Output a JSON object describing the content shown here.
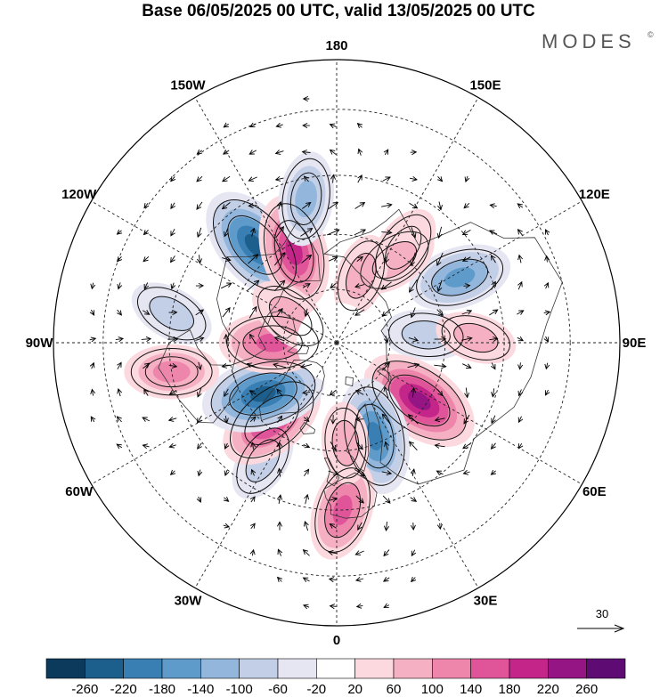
{
  "title": "Base 06/05/2025 00 UTC, valid 13/05/2025 00 UTC",
  "brand": {
    "name": "MODES",
    "mark": "©"
  },
  "projection": {
    "type": "north-polar-stereographic",
    "center": "North Pole"
  },
  "longitude_labels": [
    {
      "text": "180",
      "lon": 180
    },
    {
      "text": "150E",
      "lon": 150
    },
    {
      "text": "120E",
      "lon": 120
    },
    {
      "text": "90E",
      "lon": 90
    },
    {
      "text": "60E",
      "lon": 60
    },
    {
      "text": "30E",
      "lon": 30
    },
    {
      "text": "0",
      "lon": 0
    },
    {
      "text": "30W",
      "lon": -30
    },
    {
      "text": "60W",
      "lon": -60
    },
    {
      "text": "90W",
      "lon": -90
    },
    {
      "text": "120W",
      "lon": -120
    },
    {
      "text": "150W",
      "lon": -150
    }
  ],
  "colorbar": {
    "levels": [
      "-260",
      "-220",
      "-180",
      "-140",
      "-100",
      "-60",
      "-20",
      "20",
      "60",
      "100",
      "140",
      "180",
      "220",
      "260"
    ],
    "colors": [
      "#0b3a5c",
      "#1d5f8c",
      "#3a7fb3",
      "#5e9bcb",
      "#93b7dc",
      "#c3cfe6",
      "#e6e5f2",
      "#ffffff",
      "#fbd9df",
      "#f5b1c3",
      "#ee86ab",
      "#e0559a",
      "#c32589",
      "#951584",
      "#5e0b74"
    ]
  },
  "reference_vector": {
    "value": "30"
  },
  "anomalies": [
    {
      "lat": 55,
      "lon": -140,
      "value": -230
    },
    {
      "lat": 62,
      "lon": -155,
      "value": 190
    },
    {
      "lat": 50,
      "lon": -168,
      "value": -110
    },
    {
      "lat": 58,
      "lon": 145,
      "value": 80
    },
    {
      "lat": 52,
      "lon": 118,
      "value": -150
    },
    {
      "lat": 62,
      "lon": 145,
      "value": 90
    },
    {
      "lat": 70,
      "lon": 160,
      "value": 70
    },
    {
      "lat": 65,
      "lon": 95,
      "value": -80
    },
    {
      "lat": 52,
      "lon": 92,
      "value": 60
    },
    {
      "lat": 62,
      "lon": 55,
      "value": 230
    },
    {
      "lat": 62,
      "lon": 22,
      "value": -200
    },
    {
      "lat": 45,
      "lon": 2,
      "value": 140
    },
    {
      "lat": 52,
      "lon": -32,
      "value": -70
    },
    {
      "lat": 62,
      "lon": -40,
      "value": 190
    },
    {
      "lat": 65,
      "lon": -55,
      "value": -230
    },
    {
      "lat": 72,
      "lon": -90,
      "value": 160
    },
    {
      "lat": 45,
      "lon": -80,
      "value": 110
    },
    {
      "lat": 45,
      "lon": -100,
      "value": -80
    },
    {
      "lat": 62,
      "lon": 5,
      "value": 60
    },
    {
      "lat": 75,
      "lon": -120,
      "value": 90
    }
  ]
}
